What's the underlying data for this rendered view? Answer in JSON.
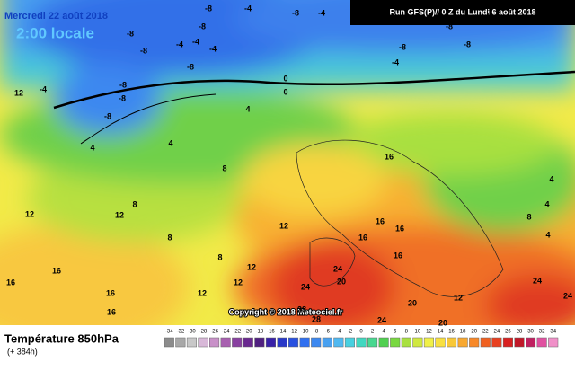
{
  "header": {
    "valid_date": "Mercredi 22 août 2018",
    "local_time": "2:00 locale",
    "run": "Run GFS(P)// 0 Z du Lundi 6 août 2018"
  },
  "copyright": "Copyright © 2018 Meteociel.fr",
  "footer": {
    "parameter": "Température 850hPa",
    "lead_time": "(+ 384h)"
  },
  "legend": {
    "values": [
      -34,
      -32,
      -30,
      -28,
      -26,
      -24,
      -22,
      -20,
      -18,
      -16,
      -14,
      -12,
      -10,
      -8,
      -6,
      -4,
      -2,
      0,
      2,
      4,
      6,
      8,
      10,
      12,
      14,
      16,
      18,
      20,
      22,
      24,
      26,
      28,
      30,
      32,
      34
    ],
    "colors": [
      "#8c8c8c",
      "#a8a8a8",
      "#c8c8c8",
      "#d8b8d8",
      "#c890c8",
      "#a860b0",
      "#8840a0",
      "#6a2890",
      "#502080",
      "#3820a8",
      "#2838c8",
      "#2850e0",
      "#3070f0",
      "#3c88f0",
      "#48a0f0",
      "#50b8f0",
      "#48d0e0",
      "#40d8c0",
      "#48d890",
      "#50d050",
      "#78d840",
      "#a8e040",
      "#d0e840",
      "#f0f048",
      "#f8e040",
      "#f8c838",
      "#f8a830",
      "#f88828",
      "#f06020",
      "#e84020",
      "#d82020",
      "#c01828",
      "#c02060",
      "#e050a0",
      "#f090c8"
    ]
  },
  "contour_labels": [
    "-8",
    "-8",
    "-4",
    "-4",
    "-8",
    "-8",
    "-4",
    "-8",
    "-8",
    "-8",
    "-8",
    "-4",
    "-8",
    "-4",
    "-4",
    "-8",
    "-8",
    "-8",
    "-8",
    "0",
    "0",
    "4",
    "-4",
    "4",
    "4",
    "8",
    "8",
    "8",
    "8",
    "12",
    "12",
    "12",
    "12",
    "12",
    "12",
    "12",
    "16",
    "16",
    "16",
    "16",
    "16",
    "16",
    "16",
    "16",
    "16",
    "20",
    "20",
    "20",
    "24",
    "24",
    "24",
    "24",
    "24",
    "28",
    "28",
    "4",
    "4",
    "4",
    "8",
    "12"
  ]
}
